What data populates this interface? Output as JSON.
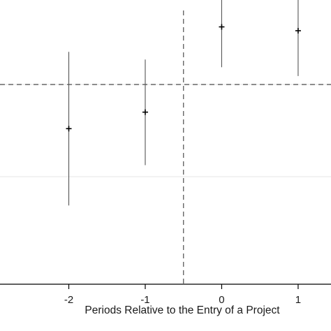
{
  "chart_data": {
    "type": "scatter",
    "title": "",
    "xlabel": "Periods Relative to the Entry of a Project",
    "ylabel": "",
    "x_ticks": [
      -2,
      -1,
      0,
      1
    ],
    "x_tick_labels": [
      "-2",
      "-1",
      "0",
      "1"
    ],
    "xlim": [
      -2.9,
      1.43
    ],
    "ylim": [
      -0.52,
      0.22
    ],
    "grid": "horizontal",
    "gridlines_y": [
      -0.24,
      0.0,
      0.24
    ],
    "reference_lines": [
      {
        "orientation": "horizontal",
        "value": 0,
        "style": "dashed"
      },
      {
        "orientation": "vertical",
        "value": -0.5,
        "style": "dashed"
      }
    ],
    "series": [
      {
        "x": [
          -2,
          -1,
          0,
          1
        ],
        "estimate": [
          -0.115,
          -0.072,
          0.15,
          0.14
        ],
        "ci_low": [
          -0.315,
          -0.21,
          0.045,
          0.022
        ],
        "ci_high": [
          0.085,
          0.065,
          0.255,
          0.257
        ]
      }
    ]
  }
}
